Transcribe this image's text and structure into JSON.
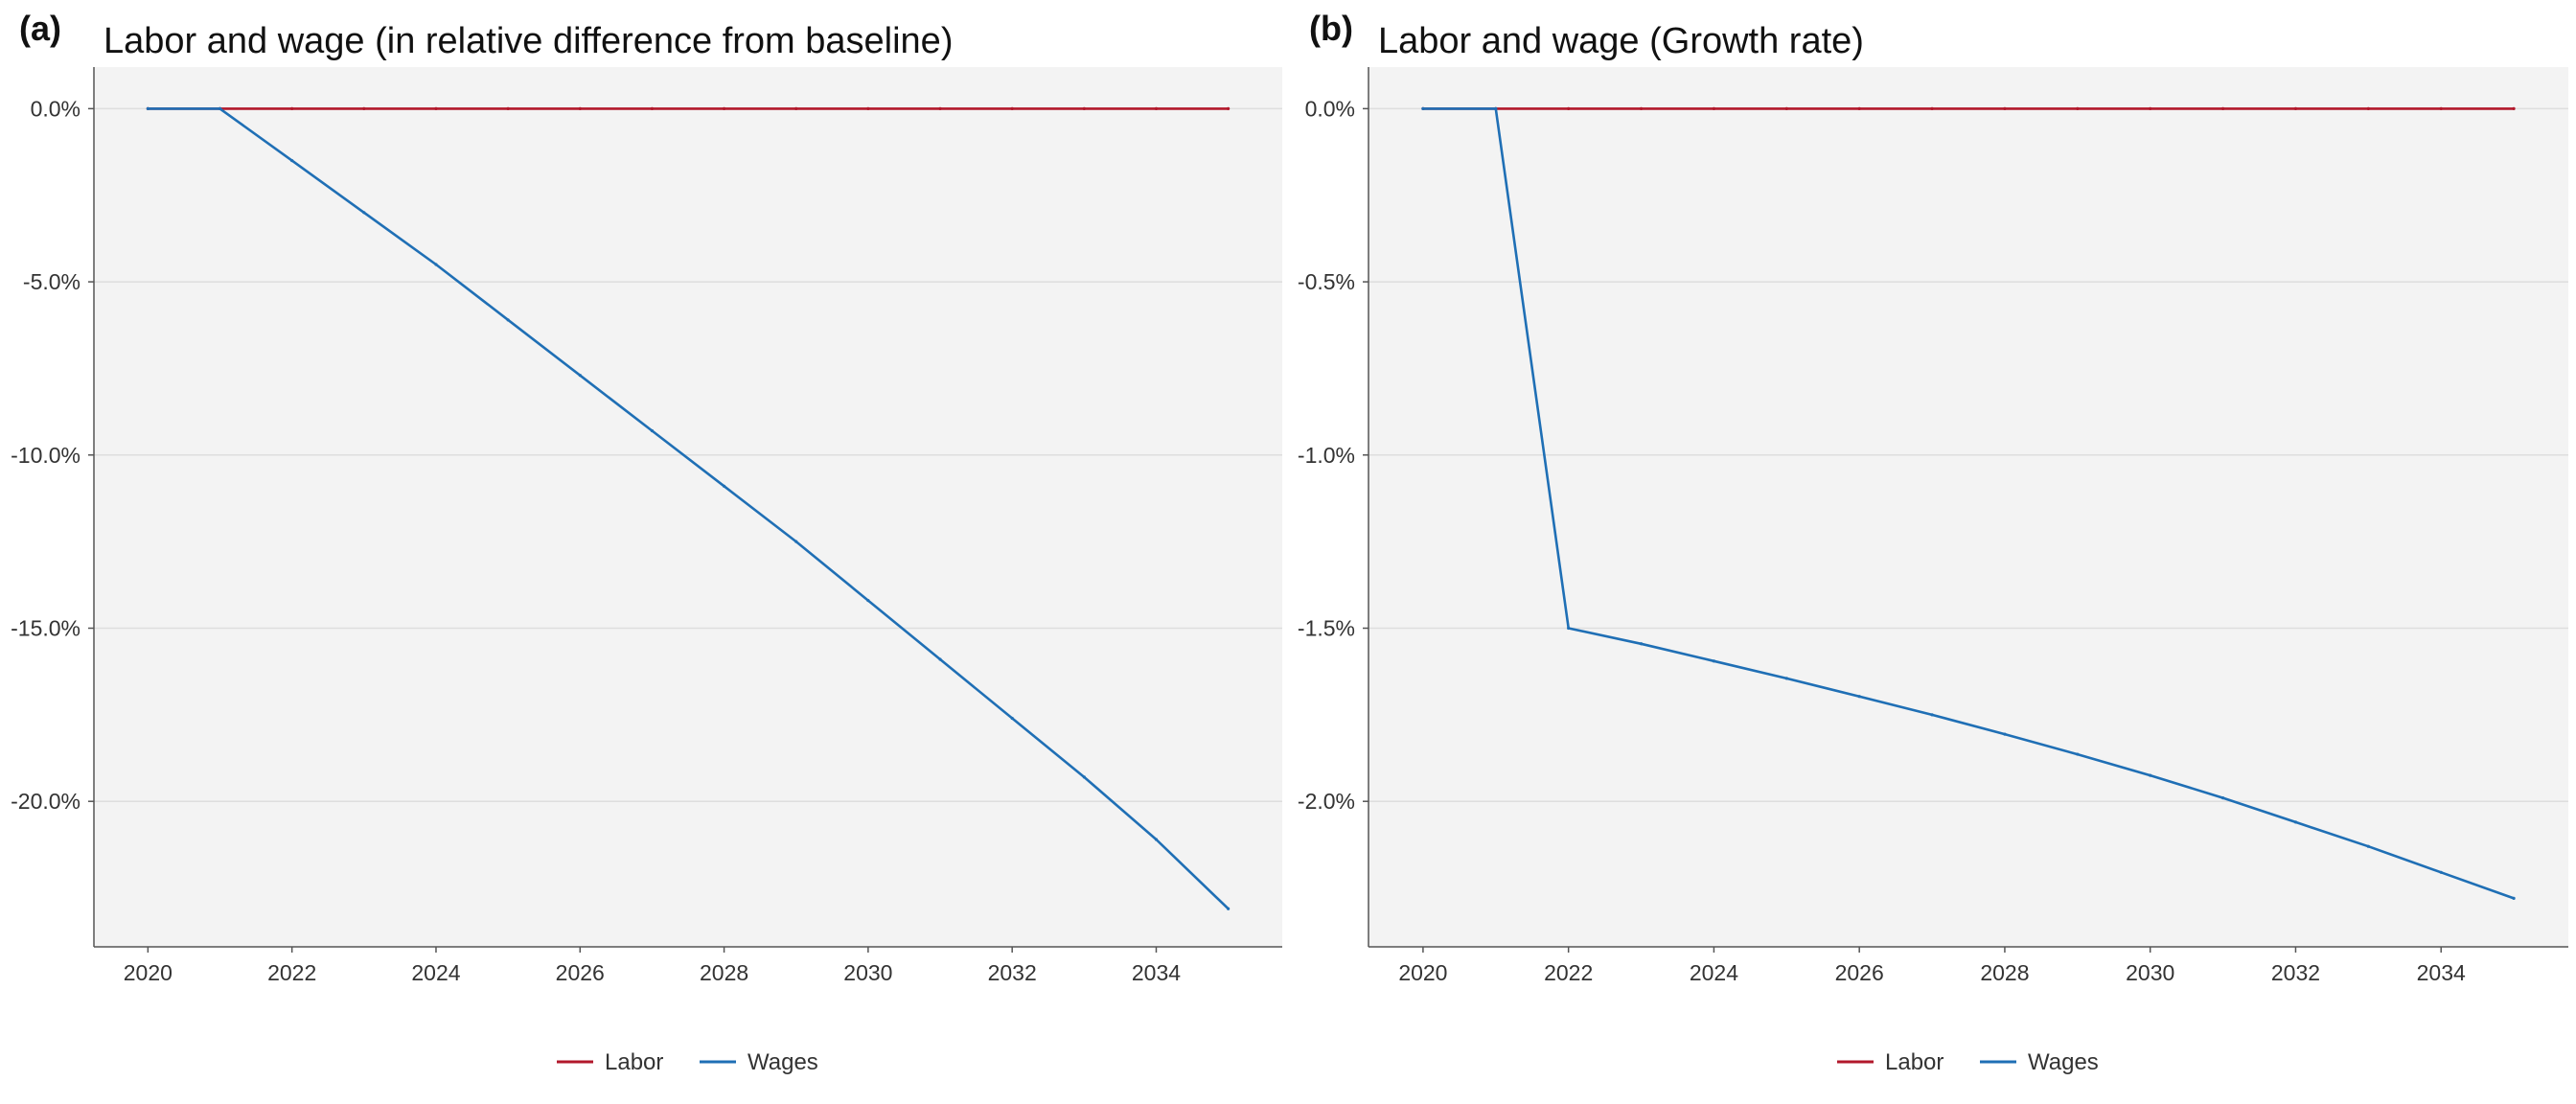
{
  "chart_data": [
    {
      "panel": "(a)",
      "type": "line",
      "title": "Labor and wage (in relative difference from baseline)",
      "xlabel": "",
      "ylabel": "",
      "x": [
        2020,
        2021,
        2022,
        2023,
        2024,
        2025,
        2026,
        2027,
        2028,
        2029,
        2030,
        2031,
        2032,
        2033,
        2034,
        2035
      ],
      "xlim": [
        2019.25,
        2035.75
      ],
      "ylim": [
        -24.2,
        1.2
      ],
      "xticks": [
        2020,
        2022,
        2024,
        2026,
        2028,
        2030,
        2032,
        2034
      ],
      "yticks": [
        0,
        -5,
        -10,
        -15,
        -20
      ],
      "ytick_labels": [
        "0.0%",
        "-5.0%",
        "-10.0%",
        "-15.0%",
        "-20.0%"
      ],
      "grid": "horizontal",
      "legend_position": "bottom",
      "series": [
        {
          "name": "Labor",
          "color": "#b2182b",
          "values": [
            0,
            0,
            0,
            0,
            0,
            0,
            0,
            0,
            0,
            0,
            0,
            0,
            0,
            0,
            0,
            0
          ]
        },
        {
          "name": "Wages",
          "color": "#1f6fb5",
          "values": [
            0,
            0,
            -1.5,
            -3.0,
            -4.5,
            -6.1,
            -7.7,
            -9.3,
            -10.9,
            -12.5,
            -14.2,
            -15.9,
            -17.6,
            -19.3,
            -21.1,
            -23.1
          ]
        }
      ]
    },
    {
      "panel": "(b)",
      "type": "line",
      "title": "Labor and wage (Growth rate)",
      "xlabel": "",
      "ylabel": "",
      "x": [
        2020,
        2021,
        2022,
        2023,
        2024,
        2025,
        2026,
        2027,
        2028,
        2029,
        2030,
        2031,
        2032,
        2033,
        2034,
        2035
      ],
      "xlim": [
        2019.25,
        2035.75
      ],
      "ylim": [
        -2.42,
        0.12
      ],
      "xticks": [
        2020,
        2022,
        2024,
        2026,
        2028,
        2030,
        2032,
        2034
      ],
      "yticks": [
        0,
        -0.5,
        -1.0,
        -1.5,
        -2.0
      ],
      "ytick_labels": [
        "0.0%",
        "-0.5%",
        "-1.0%",
        "-1.5%",
        "-2.0%"
      ],
      "grid": "horizontal",
      "legend_position": "bottom",
      "series": [
        {
          "name": "Labor",
          "color": "#b2182b",
          "values": [
            0,
            0,
            0,
            0,
            0,
            0,
            0,
            0,
            0,
            0,
            0,
            0,
            0,
            0,
            0,
            0
          ]
        },
        {
          "name": "Wages",
          "color": "#1f6fb5",
          "values": [
            0,
            0,
            -1.5,
            -1.545,
            -1.595,
            -1.645,
            -1.697,
            -1.75,
            -1.806,
            -1.864,
            -1.925,
            -1.99,
            -2.06,
            -2.13,
            -2.205,
            -2.28
          ]
        }
      ]
    }
  ]
}
